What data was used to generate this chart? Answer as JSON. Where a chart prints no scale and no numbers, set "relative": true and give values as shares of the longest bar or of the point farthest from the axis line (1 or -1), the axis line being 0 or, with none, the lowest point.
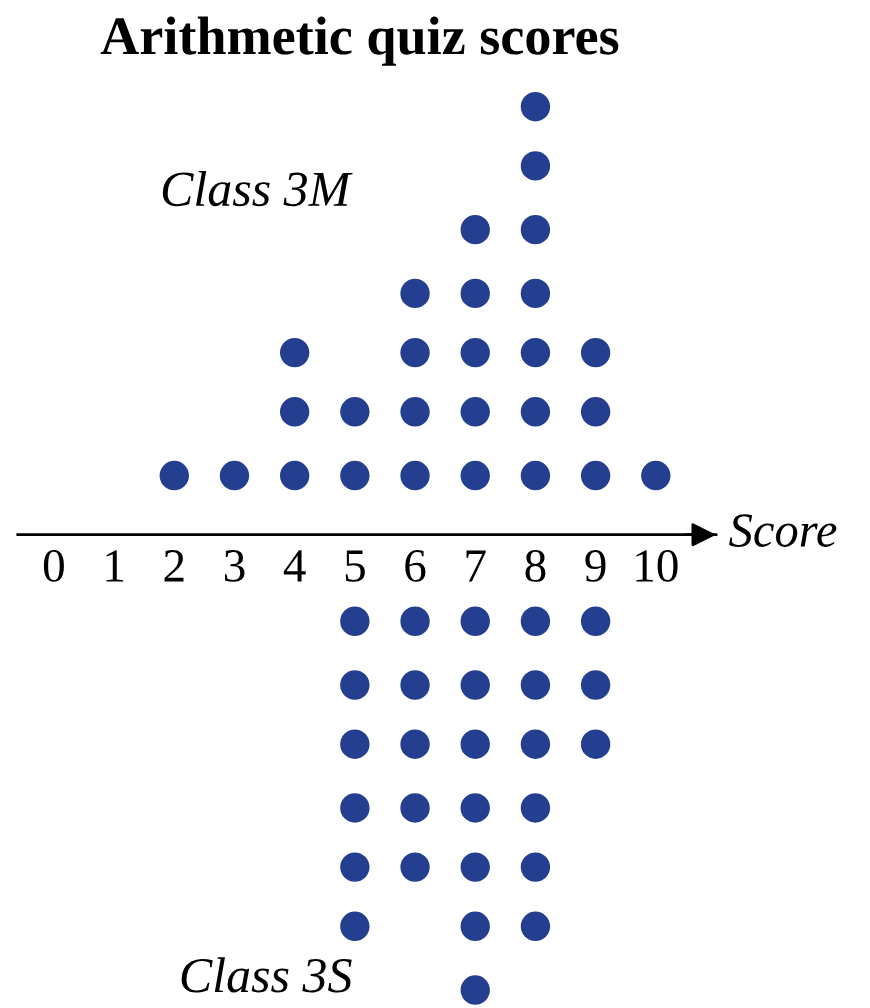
{
  "chart_data": {
    "type": "scatter",
    "title": "Arithmetic quiz scores",
    "xlabel": "Score",
    "xlim": [
      -0.6,
      11
    ],
    "xticks": [
      0,
      1,
      2,
      3,
      4,
      5,
      6,
      7,
      8,
      9,
      10
    ],
    "tick_labels": "x",
    "marker": "circle",
    "relative": true,
    "series": [
      {
        "name": "Class 3M",
        "color": "#243f8f",
        "x": [
          2,
          3,
          4,
          4,
          4,
          5,
          5,
          6,
          6,
          6,
          6,
          7,
          7,
          7,
          7,
          7,
          8,
          8,
          8,
          8,
          8,
          8,
          8,
          9,
          9,
          9,
          10
        ],
        "values": [
          0.13,
          0.13,
          0.13,
          0.27,
          0.4,
          0.13,
          0.27,
          0.13,
          0.27,
          0.4,
          0.53,
          0.13,
          0.27,
          0.4,
          0.53,
          0.67,
          0.13,
          0.27,
          0.4,
          0.53,
          0.67,
          0.81,
          0.94,
          0.13,
          0.27,
          0.4,
          0.13
        ]
      },
      {
        "name": "Class 3S",
        "color": "#243f8f",
        "x": [
          5,
          5,
          5,
          5,
          5,
          5,
          6,
          6,
          6,
          6,
          6,
          7,
          7,
          7,
          7,
          7,
          7,
          7,
          8,
          8,
          8,
          8,
          8,
          8,
          9,
          9,
          9
        ],
        "values": [
          -0.19,
          -0.33,
          -0.46,
          -0.6,
          -0.73,
          -0.86,
          -0.19,
          -0.33,
          -0.46,
          -0.6,
          -0.73,
          -0.19,
          -0.33,
          -0.46,
          -0.6,
          -0.73,
          -0.86,
          -1,
          -0.19,
          -0.33,
          -0.46,
          -0.6,
          -0.73,
          -0.86,
          -0.19,
          -0.33,
          -0.46
        ]
      }
    ]
  }
}
